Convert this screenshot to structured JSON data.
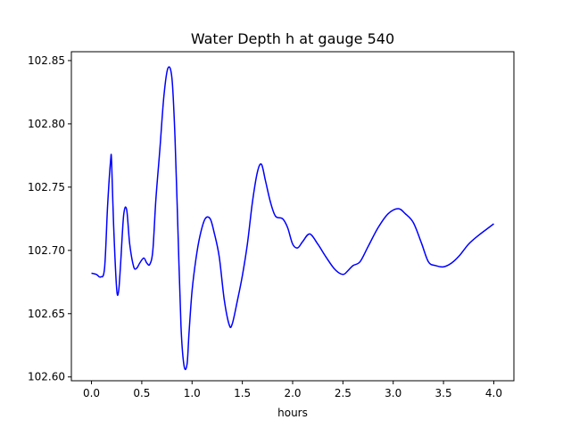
{
  "chart_data": {
    "type": "line",
    "title": "Water Depth h at gauge 540",
    "xlabel": "hours",
    "ylabel": "",
    "xlim": [
      -0.2,
      4.2
    ],
    "ylim": [
      102.597,
      102.857
    ],
    "x_ticks": [
      0.0,
      0.5,
      1.0,
      1.5,
      2.0,
      2.5,
      3.0,
      3.5,
      4.0
    ],
    "x_tick_labels": [
      "0.0",
      "0.5",
      "1.0",
      "1.5",
      "2.0",
      "2.5",
      "3.0",
      "3.5",
      "4.0"
    ],
    "y_ticks": [
      102.6,
      102.65,
      102.7,
      102.75,
      102.8,
      102.85
    ],
    "y_tick_labels": [
      "102.60",
      "102.65",
      "102.70",
      "102.75",
      "102.80",
      "102.85"
    ],
    "grid": false,
    "series": [
      {
        "color": "#0000ff",
        "x": [
          0.0,
          0.05,
          0.09,
          0.13,
          0.16,
          0.19,
          0.2,
          0.22,
          0.25,
          0.27,
          0.29,
          0.32,
          0.35,
          0.38,
          0.42,
          0.45,
          0.48,
          0.52,
          0.55,
          0.58,
          0.61,
          0.64,
          0.68,
          0.72,
          0.76,
          0.8,
          0.83,
          0.86,
          0.89,
          0.92,
          0.95,
          0.97,
          1.0,
          1.04,
          1.08,
          1.13,
          1.18,
          1.22,
          1.27,
          1.32,
          1.37,
          1.4,
          1.45,
          1.5,
          1.55,
          1.6,
          1.65,
          1.69,
          1.73,
          1.78,
          1.83,
          1.9,
          1.95,
          2.0,
          2.05,
          2.1,
          2.17,
          2.25,
          2.33,
          2.42,
          2.5,
          2.55,
          2.6,
          2.67,
          2.75,
          2.85,
          2.95,
          3.05,
          3.12,
          3.2,
          3.28,
          3.35,
          3.42,
          3.5,
          3.58,
          3.66,
          3.75,
          3.85,
          3.95,
          4.0
        ],
        "y": [
          102.682,
          102.681,
          102.679,
          102.686,
          102.735,
          102.771,
          102.77,
          102.72,
          102.67,
          102.668,
          102.69,
          102.728,
          102.732,
          102.705,
          102.687,
          102.686,
          102.69,
          102.694,
          102.69,
          102.689,
          102.7,
          102.74,
          102.78,
          102.822,
          102.844,
          102.836,
          102.79,
          102.715,
          102.64,
          102.609,
          102.61,
          102.635,
          102.668,
          102.694,
          102.712,
          102.725,
          102.725,
          102.714,
          102.695,
          102.661,
          102.641,
          102.642,
          102.66,
          102.68,
          102.705,
          102.738,
          102.762,
          102.768,
          102.755,
          102.738,
          102.727,
          102.725,
          102.718,
          102.705,
          102.702,
          102.707,
          102.713,
          102.705,
          102.695,
          102.685,
          102.681,
          102.684,
          102.688,
          102.691,
          102.703,
          102.718,
          102.729,
          102.733,
          102.729,
          102.722,
          102.706,
          102.691,
          102.688,
          102.687,
          102.69,
          102.696,
          102.705,
          102.712,
          102.718,
          102.721
        ]
      }
    ]
  }
}
